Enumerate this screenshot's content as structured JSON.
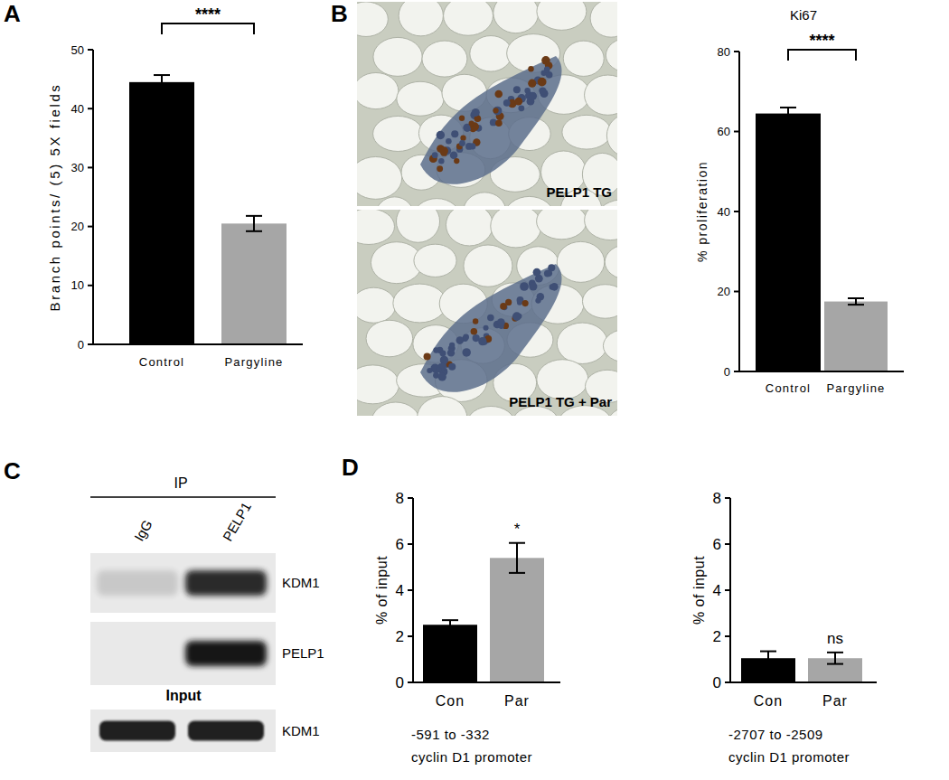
{
  "chart_data": [
    {
      "type": "bar",
      "categories": [
        "Control",
        "Pargyline"
      ],
      "values": [
        44.5,
        20.5
      ],
      "errors": [
        1.2,
        1.3
      ],
      "colors": [
        "#000000",
        "#a6a6a6"
      ],
      "y_label": "Branch points/ (5) 5X fields",
      "ylim": [
        0,
        50
      ],
      "yticks": [
        0,
        10,
        20,
        30,
        40,
        50
      ],
      "grid": false,
      "annotations": [
        {
          "text": "****",
          "at": [
            0,
            1
          ]
        }
      ]
    },
    {
      "type": "bar",
      "title": "Ki67",
      "categories": [
        "Control",
        "Pargyline"
      ],
      "values": [
        64.5,
        17.5
      ],
      "errors": [
        1.5,
        0.8
      ],
      "colors": [
        "#000000",
        "#a6a6a6"
      ],
      "y_label": "% proliferation",
      "ylim": [
        0,
        80
      ],
      "yticks": [
        0,
        20,
        40,
        60,
        80
      ],
      "grid": false,
      "annotations": [
        {
          "text": "****",
          "at": [
            0,
            1
          ]
        }
      ]
    },
    {
      "type": "bar",
      "categories": [
        "Con",
        "Par"
      ],
      "values": [
        2.5,
        5.4
      ],
      "errors": [
        0.2,
        0.65
      ],
      "colors": [
        "#000000",
        "#a6a6a6"
      ],
      "y_label": "% of input",
      "x_label": [
        "-591 to -332",
        "cyclin D1 promoter"
      ],
      "ylim": [
        0,
        8
      ],
      "yticks": [
        0,
        2,
        4,
        6,
        8
      ],
      "grid": false,
      "annotations": [
        {
          "text": "*",
          "at": [
            1
          ]
        }
      ]
    },
    {
      "type": "bar",
      "categories": [
        "Con",
        "Par"
      ],
      "values": [
        1.05,
        1.05
      ],
      "errors": [
        0.3,
        0.25
      ],
      "colors": [
        "#000000",
        "#a6a6a6"
      ],
      "y_label": "% of input",
      "x_label": [
        "-2707 to -2509",
        "cyclin D1 promoter"
      ],
      "ylim": [
        0,
        8
      ],
      "yticks": [
        0,
        2,
        4,
        6,
        8
      ],
      "grid": false,
      "annotations": [
        {
          "text": "ns",
          "at": [
            1
          ]
        }
      ]
    }
  ],
  "panels": {
    "letters": [
      "A",
      "B",
      "C",
      "D"
    ],
    "micrographs": [
      {
        "label": "PELP1 TG"
      },
      {
        "label": "PELP1 TG + Par"
      }
    ],
    "blot": {
      "header": "IP",
      "lanes": [
        "IgG",
        "PELP1"
      ],
      "rows": [
        "KDM1",
        "PELP1"
      ],
      "input_header": "Input",
      "input_rows": [
        "KDM1"
      ]
    }
  }
}
